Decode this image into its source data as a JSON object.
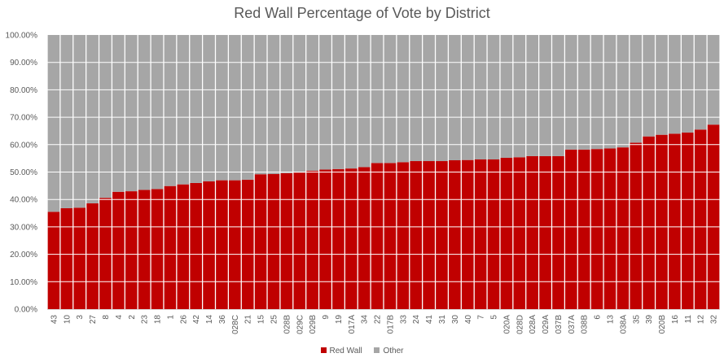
{
  "chart_data": {
    "type": "bar",
    "stacked": true,
    "percent_stacked": true,
    "title": "Red Wall Percentage of Vote by District",
    "xlabel": "",
    "ylabel": "",
    "ylim": [
      0,
      100
    ],
    "yticks": [
      "0.00%",
      "10.00%",
      "20.00%",
      "30.00%",
      "40.00%",
      "50.00%",
      "60.00%",
      "70.00%",
      "80.00%",
      "90.00%",
      "100.00%"
    ],
    "categories": [
      "43",
      "10",
      "3",
      "27",
      "8",
      "4",
      "2",
      "23",
      "18",
      "1",
      "26",
      "42",
      "14",
      "36",
      "028C",
      "21",
      "15",
      "25",
      "028B",
      "029C",
      "029B",
      "9",
      "19",
      "017A",
      "34",
      "22",
      "017B",
      "33",
      "24",
      "41",
      "31",
      "30",
      "40",
      "7",
      "5",
      "020A",
      "028D",
      "028A",
      "029A",
      "037B",
      "037A",
      "038B",
      "6",
      "13",
      "038A",
      "35",
      "39",
      "020B",
      "16",
      "11",
      "12",
      "32"
    ],
    "series": [
      {
        "name": "Red Wall",
        "color": "#C00000",
        "values": [
          35.5,
          36.8,
          37.0,
          38.6,
          40.6,
          42.8,
          43.0,
          43.5,
          43.8,
          44.9,
          45.5,
          46.0,
          46.6,
          47.0,
          47.0,
          47.2,
          49.2,
          49.3,
          49.6,
          49.8,
          50.5,
          50.9,
          51.1,
          51.3,
          51.8,
          53.3,
          53.3,
          53.6,
          54.0,
          54.0,
          54.0,
          54.3,
          54.4,
          54.6,
          54.6,
          55.2,
          55.4,
          55.8,
          55.8,
          55.8,
          58.2,
          58.2,
          58.4,
          58.6,
          59.0,
          60.7,
          63.0,
          63.6,
          64.0,
          64.4,
          65.5,
          67.3
        ]
      },
      {
        "name": "Other",
        "color": "#A6A6A6",
        "values": [
          64.5,
          63.2,
          63.0,
          61.4,
          59.4,
          57.2,
          57.0,
          56.5,
          56.2,
          55.1,
          54.5,
          54.0,
          53.4,
          53.0,
          53.0,
          52.8,
          50.8,
          50.7,
          50.4,
          50.2,
          49.5,
          49.1,
          48.9,
          48.7,
          48.2,
          46.7,
          46.7,
          46.4,
          46.0,
          46.0,
          46.0,
          45.7,
          45.6,
          45.4,
          45.4,
          44.8,
          44.6,
          44.2,
          44.2,
          44.2,
          41.8,
          41.8,
          41.6,
          41.4,
          41.0,
          39.3,
          37.0,
          36.4,
          36.0,
          35.6,
          34.5,
          32.7
        ]
      }
    ],
    "legend_position": "bottom",
    "grid": true
  }
}
